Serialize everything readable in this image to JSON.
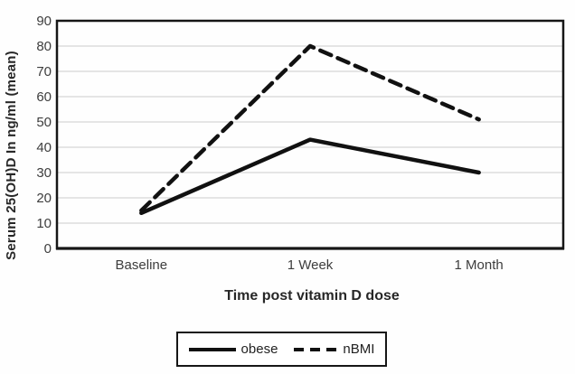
{
  "figure": {
    "background": "#fefefe",
    "axis_color": "#161616",
    "grid_color": "#d6d6d6",
    "series_color": "#111111",
    "tick_text_color": "#3d3d3d",
    "title_text_color": "#272727"
  },
  "chart_data": {
    "type": "line",
    "categories": [
      "Baseline",
      "1 Week",
      "1 Month"
    ],
    "series": [
      {
        "name": "obese",
        "line_style": "solid",
        "values": [
          14,
          43,
          30
        ]
      },
      {
        "name": "nBMI",
        "line_style": "dashed",
        "values": [
          15,
          80,
          51
        ]
      }
    ],
    "title": "",
    "xlabel": "Time post vitamin D dose",
    "ylabel": "Serum 25(OH)D In ng/ml (mean)",
    "ylim": [
      0,
      90
    ],
    "ytick_step": 10,
    "yticks": [
      0,
      10,
      20,
      30,
      40,
      50,
      60,
      70,
      80,
      90
    ],
    "grid": "horizontal",
    "legend_position": "bottom-boxed"
  }
}
